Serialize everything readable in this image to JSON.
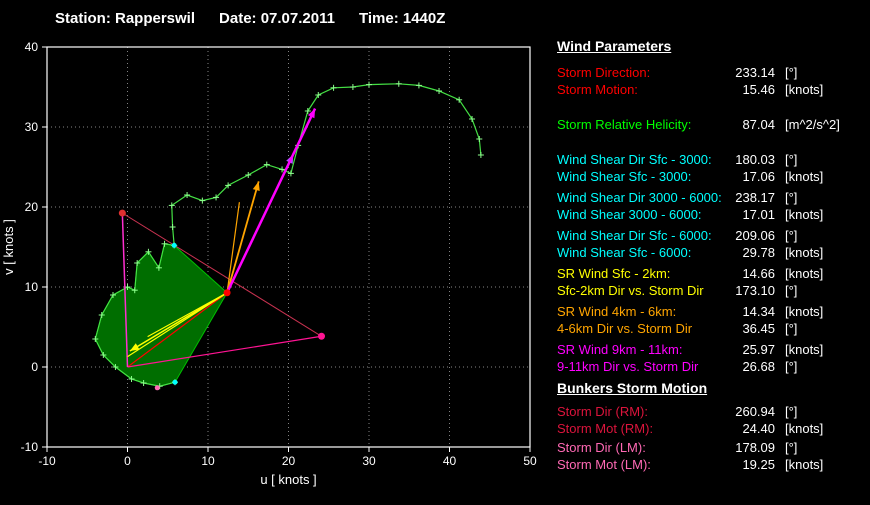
{
  "header": {
    "station": "Station: Rapperswil",
    "date": "Date: 07.07.2011",
    "time": "Time: 1440Z"
  },
  "panel": {
    "header": "Wind Parameters",
    "groups": [
      {
        "color": "#ff0000",
        "rows": [
          {
            "label": "Storm Direction:",
            "value": "233.14",
            "unit": "[°]"
          },
          {
            "label": "Storm Motion:",
            "value": "15.46",
            "unit": "[knots]"
          }
        ]
      },
      {
        "color": "#00ff00",
        "rows": [
          {
            "label": "Storm Relative Helicity:",
            "value": "87.04",
            "unit": "[m^2/s^2]"
          }
        ]
      },
      {
        "color": "#00ffff",
        "rows": [
          {
            "label": "Wind Shear Dir Sfc - 3000:",
            "value": "180.03",
            "unit": "[°]"
          },
          {
            "label": "Wind Shear Sfc - 3000:",
            "value": "17.06",
            "unit": "[knots]"
          }
        ]
      },
      {
        "color": "#00ffff",
        "rows": [
          {
            "label": "Wind Shear Dir 3000 - 6000:",
            "value": "238.17",
            "unit": "[°]"
          },
          {
            "label": "Wind Shear 3000 - 6000:",
            "value": "17.01",
            "unit": "[knots]"
          }
        ]
      },
      {
        "color": "#00ffff",
        "rows": [
          {
            "label": "Wind Shear Dir Sfc - 6000:",
            "value": "209.06",
            "unit": "[°]"
          },
          {
            "label": "Wind Shear Sfc - 6000:",
            "value": "29.78",
            "unit": "[knots]"
          }
        ]
      },
      {
        "color": "#ffff00",
        "rows": [
          {
            "label": "SR Wind Sfc - 2km:",
            "value": "14.66",
            "unit": "[knots]"
          },
          {
            "label": "Sfc-2km Dir vs. Storm Dir",
            "value": "173.10",
            "unit": "[°]"
          }
        ]
      },
      {
        "color": "#ffa500",
        "rows": [
          {
            "label": "SR Wind 4km - 6km:",
            "value": "14.34",
            "unit": "[knots]"
          },
          {
            "label": "4-6km Dir vs. Storm Dir",
            "value": "36.45",
            "unit": "[°]"
          }
        ]
      },
      {
        "color": "#ff00ff",
        "rows": [
          {
            "label": "SR Wind 9km - 11km:",
            "value": "25.97",
            "unit": "[knots]"
          },
          {
            "label": "9-11km Dir vs. Storm Dir",
            "value": "26.68",
            "unit": "[°]"
          }
        ]
      }
    ],
    "header2": "Bunkers Storm Motion",
    "groups2": [
      {
        "color": "#dc143c",
        "rows": [
          {
            "label": "Storm Dir (RM):",
            "value": "260.94",
            "unit": "[°]"
          },
          {
            "label": "Storm Mot (RM):",
            "value": "24.40",
            "unit": "[knots]"
          }
        ]
      },
      {
        "color": "#ff69b4",
        "rows": [
          {
            "label": "Storm Dir (LM):",
            "value": "178.09",
            "unit": "[°]"
          },
          {
            "label": "Storm Mot (LM):",
            "value": "19.25",
            "unit": "[knots]"
          }
        ]
      }
    ]
  },
  "chart_data": {
    "type": "line",
    "title": "",
    "xlabel": "u  [ knots ]",
    "ylabel": "v  [ knots ]",
    "xlim": [
      -10,
      50
    ],
    "ylim": [
      -10,
      40
    ],
    "xticks": [
      -10,
      0,
      10,
      20,
      30,
      40,
      50
    ],
    "yticks": [
      -10,
      0,
      10,
      20,
      30,
      40
    ],
    "grid": "dotted",
    "grid_color": "#9a9a9a",
    "axis_color": "#ffffff",
    "hodograph": {
      "name": "wind-profile",
      "color": "#44e044",
      "marker": "+",
      "marker_color": "#8cff8c",
      "points": [
        [
          5.9,
          -1.9
        ],
        [
          4,
          -2.4
        ],
        [
          2,
          -2
        ],
        [
          0.5,
          -1.5
        ],
        [
          -1.5,
          0
        ],
        [
          -3,
          1.5
        ],
        [
          -4,
          3.5
        ],
        [
          -3.2,
          6.5
        ],
        [
          -1.8,
          9
        ],
        [
          0,
          10
        ],
        [
          0.9,
          9.6
        ],
        [
          1.2,
          13
        ],
        [
          2.6,
          14.4
        ],
        [
          3.9,
          12.4
        ],
        [
          4.6,
          15.4
        ],
        [
          5.8,
          15.2
        ],
        [
          5.6,
          17.5
        ],
        [
          5.5,
          20.2
        ],
        [
          7.4,
          21.5
        ],
        [
          9.3,
          20.8
        ],
        [
          11,
          21.2
        ],
        [
          12.5,
          22.7
        ],
        [
          15,
          24
        ],
        [
          17.3,
          25.3
        ],
        [
          19.2,
          24.7
        ],
        [
          20.3,
          24.2
        ],
        [
          21.2,
          27.7
        ],
        [
          22.4,
          32
        ],
        [
          23.7,
          34
        ],
        [
          25.6,
          34.9
        ],
        [
          28,
          35
        ],
        [
          30,
          35.3
        ],
        [
          33.7,
          35.4
        ],
        [
          36.2,
          35.2
        ],
        [
          38.7,
          34.5
        ],
        [
          41.2,
          33.4
        ],
        [
          42.8,
          31
        ],
        [
          43.7,
          28.5
        ],
        [
          43.9,
          26.5
        ]
      ]
    },
    "srh_fill": {
      "name": "storm-relative-helicity-area",
      "color": "#006e00",
      "stroke": "#00c000",
      "points": [
        [
          12.37,
          9.28
        ],
        [
          5.9,
          -1.9
        ],
        [
          4,
          -2.4
        ],
        [
          2,
          -2
        ],
        [
          0.5,
          -1.5
        ],
        [
          -1.5,
          0
        ],
        [
          -3,
          1.5
        ],
        [
          -4,
          3.5
        ],
        [
          -3.2,
          6.5
        ],
        [
          -1.8,
          9
        ],
        [
          0,
          10
        ],
        [
          0.9,
          9.6
        ],
        [
          1.2,
          13
        ],
        [
          2.6,
          14.4
        ],
        [
          3.9,
          12.4
        ],
        [
          4.6,
          15.4
        ],
        [
          5.8,
          15.2
        ]
      ]
    },
    "vectors": [
      {
        "name": "storm-motion-vector",
        "color": "#ff0000",
        "width": 1.2,
        "from": [
          0,
          0
        ],
        "to": [
          12.37,
          9.28
        ],
        "arrow": false
      },
      {
        "name": "bunkers-rm-vector",
        "color": "#ff1493",
        "width": 1.2,
        "from": [
          0,
          0
        ],
        "to": [
          24.1,
          3.84
        ],
        "arrow": false
      },
      {
        "name": "bunkers-lm-vector",
        "color": "#ff2fd0",
        "width": 1.5,
        "from": [
          0,
          0
        ],
        "to": [
          -0.64,
          19.24
        ],
        "arrow": false
      },
      {
        "name": "rm-lm-connector",
        "color": "#c83250",
        "width": 1,
        "from": [
          -0.64,
          19.24
        ],
        "to": [
          24.1,
          3.84
        ],
        "arrow": false
      },
      {
        "name": "sr-wind-sfc-line",
        "color": "#ffff00",
        "width": 1.2,
        "from": [
          12.37,
          9.28
        ],
        "to": [
          0,
          1.3
        ],
        "arrow": false
      },
      {
        "name": "sr-wind-2km-line",
        "color": "#ffff00",
        "width": 1.2,
        "from": [
          12.37,
          9.28
        ],
        "to": [
          2.5,
          3.8
        ],
        "arrow": false
      },
      {
        "name": "sr-wind-sfc-2km-mean-arrow",
        "color": "#ffff00",
        "width": 1.6,
        "from": [
          12.37,
          9.28
        ],
        "to": [
          0.3,
          2.0
        ],
        "arrow": true
      },
      {
        "name": "sr-wind-4km-line",
        "color": "#ffa500",
        "width": 1.2,
        "from": [
          12.37,
          9.28
        ],
        "to": [
          13.9,
          20.6
        ],
        "arrow": false
      },
      {
        "name": "sr-wind-4-6km-mean-arrow",
        "color": "#ffa500",
        "width": 1.8,
        "from": [
          12.37,
          9.28
        ],
        "to": [
          16.3,
          23.2
        ],
        "arrow": true
      },
      {
        "name": "sr-wind-9km-arrow",
        "color": "#b050ff",
        "width": 1.8,
        "from": [
          12.37,
          9.28
        ],
        "to": [
          20.6,
          26.6
        ],
        "arrow": true
      },
      {
        "name": "sr-wind-9-11km-mean-arrow",
        "color": "#ff00ff",
        "width": 2.5,
        "from": [
          12.37,
          9.28
        ],
        "to": [
          23.3,
          32.3
        ],
        "arrow": true
      }
    ],
    "markers": [
      {
        "name": "storm-motion-point",
        "color": "#ff0000",
        "at": [
          12.37,
          9.28
        ],
        "r": 3.5
      },
      {
        "name": "bunkers-rm-point",
        "color": "#ff1493",
        "at": [
          24.1,
          3.84
        ],
        "r": 3.5
      },
      {
        "name": "bunkers-lm-point",
        "color": "#e03030",
        "at": [
          -0.64,
          19.24
        ],
        "r": 3.5
      },
      {
        "name": "wind-sfc-point",
        "color": "#00ffff",
        "at": [
          5.9,
          -1.9
        ],
        "r": 2.5
      },
      {
        "name": "wind-3km-point",
        "color": "#00ffff",
        "at": [
          5.8,
          15.2
        ],
        "r": 2.5
      },
      {
        "name": "wind-low-point",
        "color": "#ff69b4",
        "at": [
          3.7,
          -2.6
        ],
        "r": 2.5
      }
    ]
  }
}
